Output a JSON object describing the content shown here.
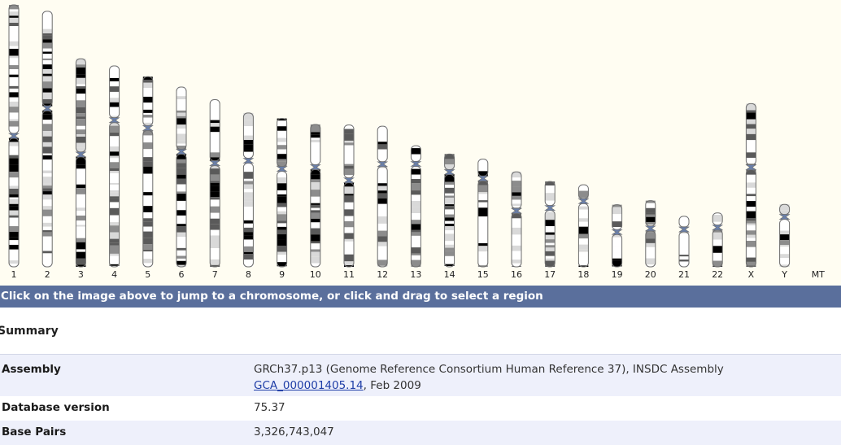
{
  "karyotype": {
    "chromosomes": [
      {
        "name": "1",
        "length": 249.25,
        "centromere": 0.5
      },
      {
        "name": "2",
        "length": 243.2,
        "centromere": 0.38
      },
      {
        "name": "3",
        "length": 198.0,
        "centromere": 0.46
      },
      {
        "name": "4",
        "length": 191.15,
        "centromere": 0.27
      },
      {
        "name": "5",
        "length": 180.9,
        "centromere": 0.27
      },
      {
        "name": "6",
        "length": 171.1,
        "centromere": 0.36
      },
      {
        "name": "7",
        "length": 159.1,
        "centromere": 0.38
      },
      {
        "name": "8",
        "length": 146.4,
        "centromere": 0.31
      },
      {
        "name": "9",
        "length": 141.2,
        "centromere": 0.34
      },
      {
        "name": "10",
        "length": 135.5,
        "centromere": 0.3
      },
      {
        "name": "11",
        "length": 135.0,
        "centromere": 0.39
      },
      {
        "name": "12",
        "length": 133.85,
        "centromere": 0.27
      },
      {
        "name": "13",
        "length": 115.2,
        "centromere": 0.15
      },
      {
        "name": "14",
        "length": 107.35,
        "centromere": 0.16
      },
      {
        "name": "15",
        "length": 102.5,
        "centromere": 0.18
      },
      {
        "name": "16",
        "length": 90.35,
        "centromere": 0.41
      },
      {
        "name": "17",
        "length": 81.2,
        "centromere": 0.31
      },
      {
        "name": "18",
        "length": 78.1,
        "centromere": 0.2
      },
      {
        "name": "19",
        "length": 59.1,
        "centromere": 0.44
      },
      {
        "name": "20",
        "length": 63.0,
        "centromere": 0.42
      },
      {
        "name": "21",
        "length": 48.1,
        "centromere": 0.26
      },
      {
        "name": "22",
        "length": 51.3,
        "centromere": 0.27
      },
      {
        "name": "X",
        "length": 155.3,
        "centromere": 0.39
      },
      {
        "name": "Y",
        "length": 59.4,
        "centromere": 0.2
      },
      {
        "name": "MT",
        "length": 0,
        "centromere": 0
      }
    ],
    "band_colors": [
      "#ffffff",
      "#d9d9d9",
      "#8c8c8c",
      "#5a5a5a",
      "#000000"
    ],
    "outline_color": "#6d6d6d",
    "centromere_color": "#6a7fa8"
  },
  "banner": {
    "text": "Click on the image above to jump to a chromosome, or click and drag to select a region",
    "color": "#5a6f9c"
  },
  "summary": {
    "title": "Summary",
    "rows": [
      {
        "label": "Assembly",
        "value_prefix": "GRCh37.p13 (Genome Reference Consortium Human Reference 37), INSDC Assembly ",
        "link": "GCA_000001405.14",
        "value_suffix": ", Feb 2009"
      },
      {
        "label": "Database version",
        "value": "75.37"
      },
      {
        "label": "Base Pairs",
        "value": "3,326,743,047"
      }
    ]
  }
}
